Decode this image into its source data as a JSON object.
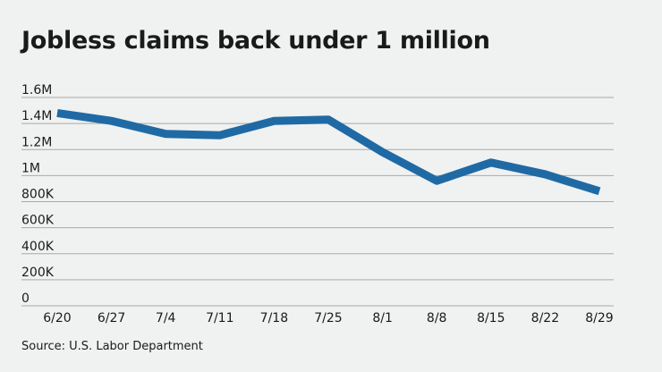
{
  "title": "Jobless claims back under 1 million",
  "source": "Source: U.S. Labor Department",
  "colors": {
    "line": "#1f6aa5",
    "grid": "#a9a9a9",
    "background": "#f0f1f1"
  },
  "chart_data": {
    "type": "line",
    "title": "Jobless claims back under 1 million",
    "xlabel": "",
    "ylabel": "",
    "categories": [
      "6/20",
      "6/27",
      "7/4",
      "7/11",
      "7/18",
      "7/25",
      "8/1",
      "8/8",
      "8/15",
      "8/22",
      "8/29"
    ],
    "series": [
      {
        "name": "Jobless claims",
        "values": [
          1480000,
          1420000,
          1320000,
          1310000,
          1420000,
          1430000,
          1180000,
          960000,
          1100000,
          1010000,
          880000
        ]
      }
    ],
    "ylim": [
      0,
      1600000
    ],
    "yticks": [
      0,
      200000,
      400000,
      600000,
      800000,
      1000000,
      1200000,
      1400000,
      1600000
    ],
    "ytick_labels": [
      "0",
      "200K",
      "400K",
      "600K",
      "800K",
      "1M",
      "1.2M",
      "1.4M",
      "1.6M"
    ],
    "grid": true,
    "legend": "none"
  }
}
